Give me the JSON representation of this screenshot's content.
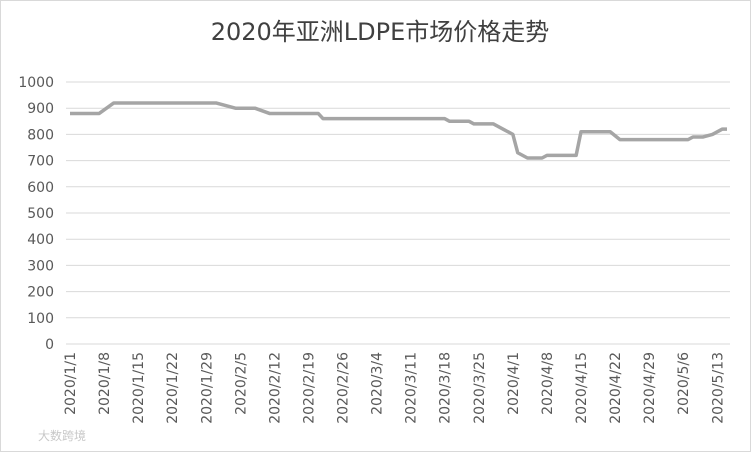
{
  "chart_data": {
    "type": "line",
    "title": "2020年亚洲LDPE市场价格走势",
    "x": [
      "2020/1/1",
      "2020/1/7",
      "2020/1/10",
      "2020/1/31",
      "2020/2/4",
      "2020/2/8",
      "2020/2/11",
      "2020/2/21",
      "2020/2/22",
      "2020/3/18",
      "2020/3/19",
      "2020/3/23",
      "2020/3/24",
      "2020/3/28",
      "2020/3/30",
      "2020/4/1",
      "2020/4/2",
      "2020/4/4",
      "2020/4/7",
      "2020/4/8",
      "2020/4/14",
      "2020/4/15",
      "2020/4/21",
      "2020/4/23",
      "2020/5/7",
      "2020/5/8",
      "2020/5/10",
      "2020/5/12",
      "2020/5/14",
      "2020/5/15"
    ],
    "series": [
      {
        "color": "#a5a5a5",
        "values": [
          880,
          880,
          920,
          920,
          900,
          900,
          880,
          880,
          860,
          860,
          850,
          850,
          840,
          840,
          820,
          800,
          730,
          710,
          710,
          720,
          720,
          810,
          810,
          780,
          780,
          790,
          790,
          800,
          820,
          820
        ]
      }
    ],
    "xlim": [
      "2020/1/1",
      "2020/5/15"
    ],
    "xticks": [
      "2020/1/1",
      "2020/1/8",
      "2020/1/15",
      "2020/1/22",
      "2020/1/29",
      "2020/2/5",
      "2020/2/12",
      "2020/2/19",
      "2020/2/26",
      "2020/3/4",
      "2020/3/11",
      "2020/3/18",
      "2020/3/25",
      "2020/4/1",
      "2020/4/8",
      "2020/4/15",
      "2020/4/22",
      "2020/4/29",
      "2020/5/6",
      "2020/5/13"
    ],
    "ylim": [
      0,
      1000
    ],
    "yticks": [
      0,
      100,
      200,
      300,
      400,
      500,
      600,
      700,
      800,
      900,
      1000
    ],
    "grid": true,
    "watermark": "大数跨境"
  }
}
